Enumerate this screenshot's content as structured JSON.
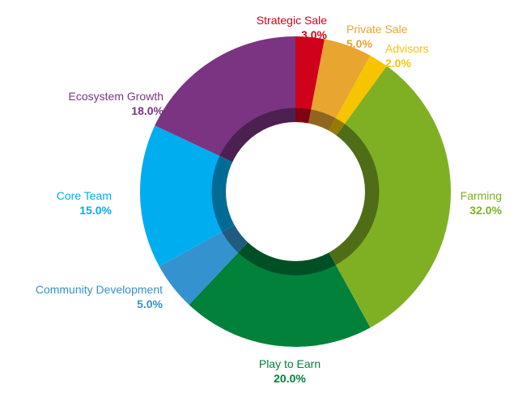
{
  "chart_data": {
    "type": "pie",
    "variant": "donut",
    "title": "",
    "legend": "none",
    "slices": [
      {
        "name": "Strategic Sale",
        "value": 3.0,
        "label": "3.0%",
        "color": "#d0021b"
      },
      {
        "name": "Private Sale",
        "value": 5.0,
        "label": "5.0%",
        "color": "#e8a530"
      },
      {
        "name": "Advisors",
        "value": 2.0,
        "label": "2.0%",
        "color": "#f6c500"
      },
      {
        "name": "Farming",
        "value": 32.0,
        "label": "32.0%",
        "color": "#7fb024"
      },
      {
        "name": "Play to Earn",
        "value": 20.0,
        "label": "20.0%",
        "color": "#02813b"
      },
      {
        "name": "Community Development",
        "value": 5.0,
        "label": "5.0%",
        "color": "#3492cf"
      },
      {
        "name": "Core Team",
        "value": 15.0,
        "label": "15.0%",
        "color": "#00aef0"
      },
      {
        "name": "Ecosystem Growth",
        "value": 18.0,
        "label": "18.0%",
        "color": "#7b3482"
      }
    ]
  }
}
